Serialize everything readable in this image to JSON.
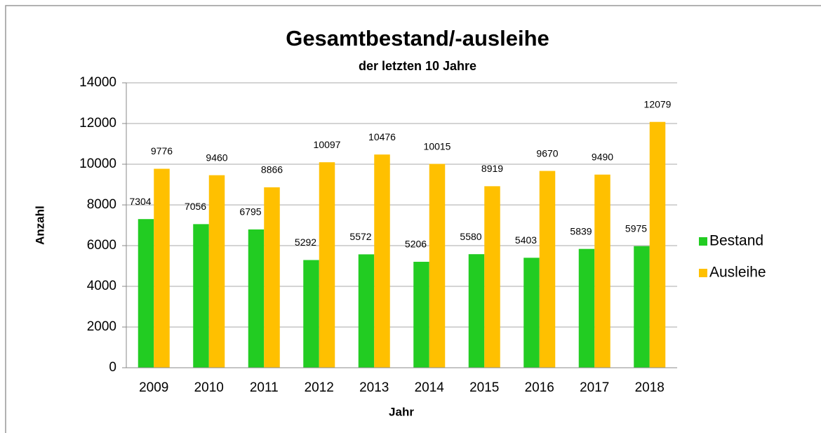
{
  "chart_data": {
    "type": "bar",
    "title": "Gesamtbestand/-ausleihe",
    "subtitle": "der letzten 10 Jahre",
    "x_label": "Jahr",
    "y_label": "Anzahl",
    "categories": [
      "2009",
      "2010",
      "2011",
      "2012",
      "2013",
      "2014",
      "2015",
      "2016",
      "2017",
      "2018"
    ],
    "series": [
      {
        "name": "Bestand",
        "color": "#22cc22",
        "values": [
          7304,
          7056,
          6795,
          5292,
          5572,
          5206,
          5580,
          5403,
          5839,
          5975
        ]
      },
      {
        "name": "Ausleihe",
        "color": "#ffc000",
        "values": [
          9776,
          9460,
          8866,
          10097,
          10476,
          10015,
          8919,
          9670,
          9490,
          12079
        ]
      }
    ],
    "ylim": [
      0,
      14000
    ],
    "yticks": [
      0,
      2000,
      4000,
      6000,
      8000,
      10000,
      12000,
      14000
    ],
    "grid": true,
    "legend": "right"
  }
}
